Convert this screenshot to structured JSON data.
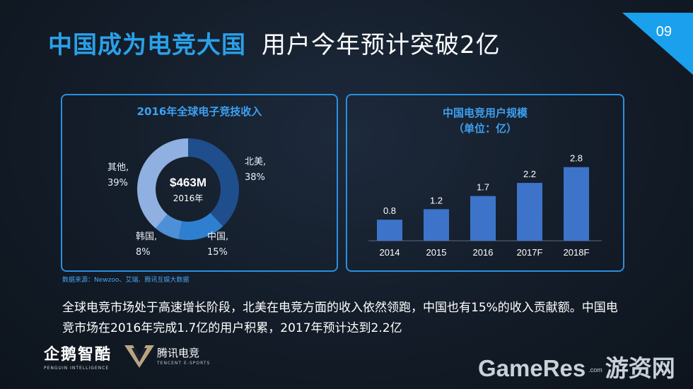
{
  "header": {
    "title_highlight": "中国成为电竞大国",
    "title_rest": "用户今年预计突破2亿",
    "page_number": "09"
  },
  "colors": {
    "accent": "#2aa0e8",
    "bar": "#3d74c9",
    "donut": [
      "#1f4e8c",
      "#2f7fd0",
      "#4e90d8",
      "#8fb0e0"
    ]
  },
  "chart_data": [
    {
      "type": "pie",
      "title": "2016年全球电子竞技收入",
      "center_value": "$463M",
      "center_sub": "2016年",
      "slices": [
        {
          "name": "北美,",
          "pct_label": "38%",
          "value": 38
        },
        {
          "name": "中国,",
          "pct_label": "15%",
          "value": 15
        },
        {
          "name": "韩国,",
          "pct_label": "8%",
          "value": 8
        },
        {
          "name": "其他,",
          "pct_label": "39%",
          "value": 39
        }
      ]
    },
    {
      "type": "bar",
      "title_line1": "中国电竞用户规模",
      "title_line2": "（单位：亿）",
      "categories": [
        "2014",
        "2015",
        "2016",
        "2017F",
        "2018F"
      ],
      "values": [
        0.8,
        1.2,
        1.7,
        2.2,
        2.8
      ],
      "value_labels": [
        "0.8",
        "1.2",
        "1.7",
        "2.2",
        "2.8"
      ],
      "ylim": [
        0,
        3.2
      ]
    }
  ],
  "source_note": "数据来源：Newzoo、艾瑞、腾讯互娱大数据",
  "description": "全球电竞市场处于高速增长阶段，北美在电竞方面的收入依然领跑，中国也有15%的收入贡献额。中国电竞市场在2016年完成1.7亿的用户积累，2017年预计达到2.2亿",
  "logos": {
    "penguin_cn": "企鹅智酷",
    "penguin_en": "PENGUIN INTELLIGENCE",
    "tencent_cn": "腾讯电竞",
    "tencent_en": "TENCENT E-SPORTS"
  },
  "watermark": {
    "brand": "GameRes",
    "com": ".com",
    "cn": "游资网"
  }
}
